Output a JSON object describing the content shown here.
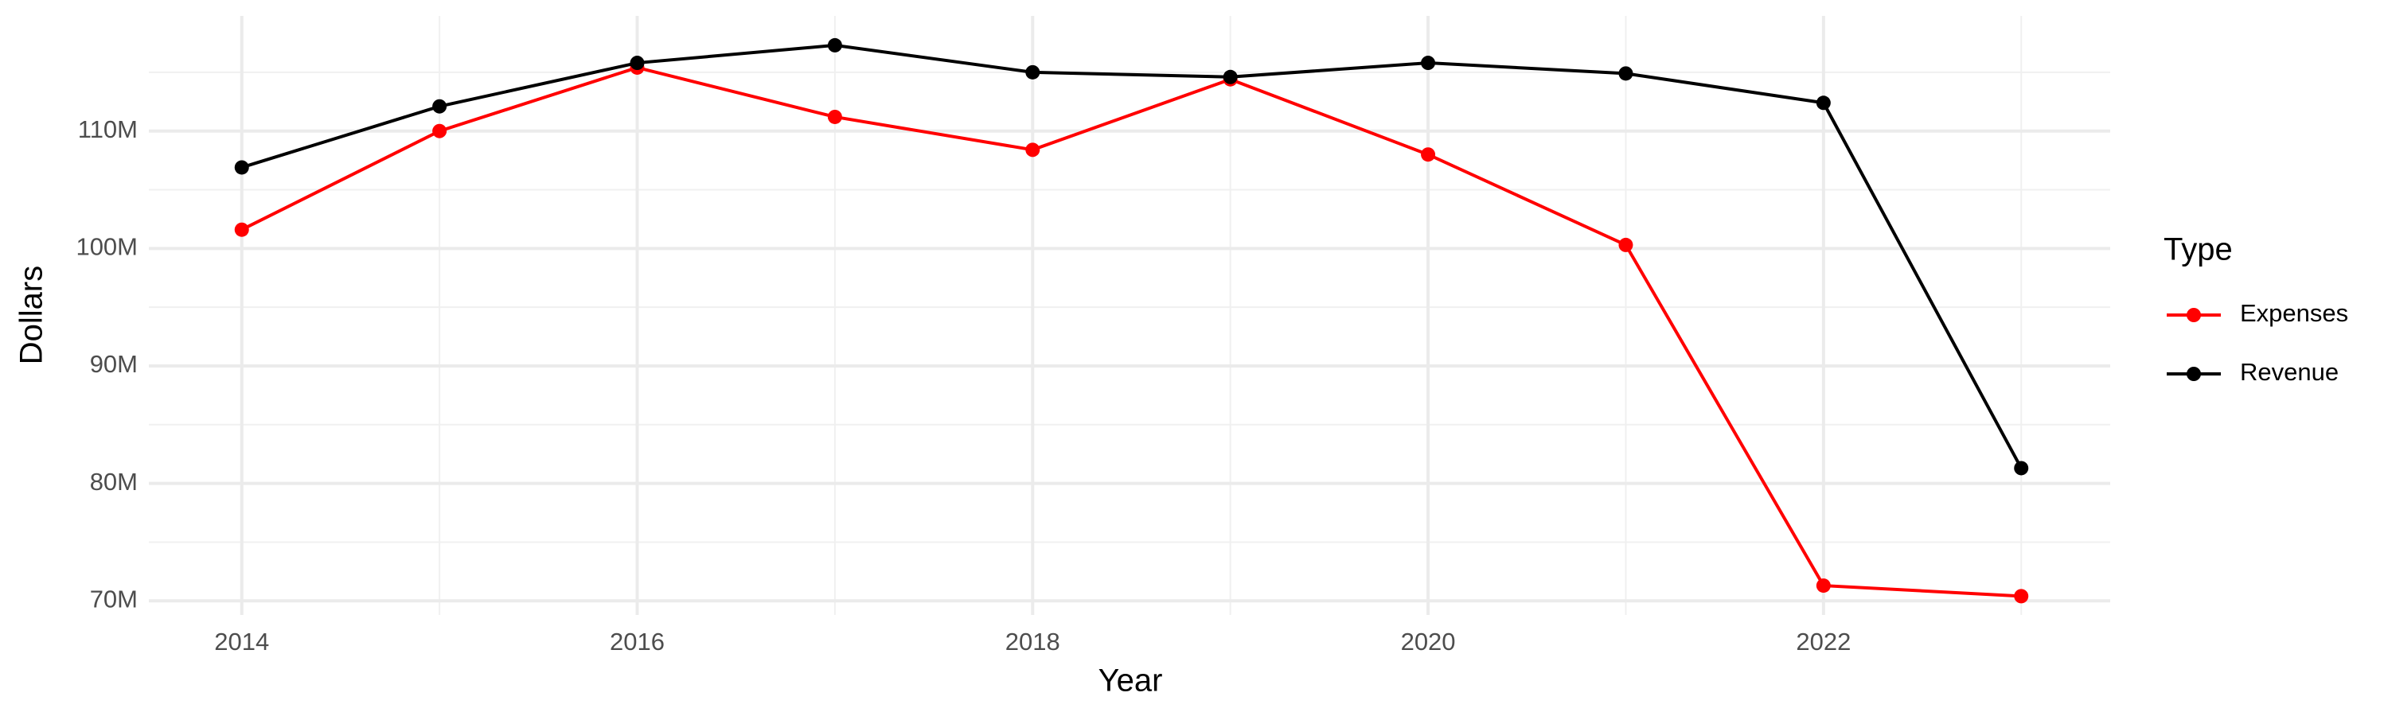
{
  "chart_data": {
    "type": "line",
    "x_label": "Year",
    "y_label": "Dollars",
    "legend_title": "Type",
    "legend_position": "right",
    "grid": true,
    "x": [
      2014,
      2015,
      2016,
      2017,
      2018,
      2019,
      2020,
      2021,
      2022,
      2023
    ],
    "series": [
      {
        "name": "Expenses",
        "color": "#ff0000",
        "values": [
          101600000,
          110000000,
          115400000,
          111200000,
          108400000,
          114400000,
          108000000,
          100300000,
          71300000,
          70400000
        ]
      },
      {
        "name": "Revenue",
        "color": "#000000",
        "values": [
          106900000,
          112100000,
          115800000,
          117300000,
          115000000,
          114600000,
          115800000,
          114900000,
          112400000,
          81300000
        ]
      }
    ],
    "xlim": [
      2013.53,
      2023.45
    ],
    "xticks": [
      2014,
      2016,
      2018,
      2020,
      2022
    ],
    "ylim": [
      68800000,
      119800000
    ],
    "yticks": [
      {
        "value": 70000000,
        "label": "70M"
      },
      {
        "value": 80000000,
        "label": "80M"
      },
      {
        "value": 90000000,
        "label": "90M"
      },
      {
        "value": 100000000,
        "label": "100M"
      },
      {
        "value": 110000000,
        "label": "110M"
      }
    ]
  }
}
